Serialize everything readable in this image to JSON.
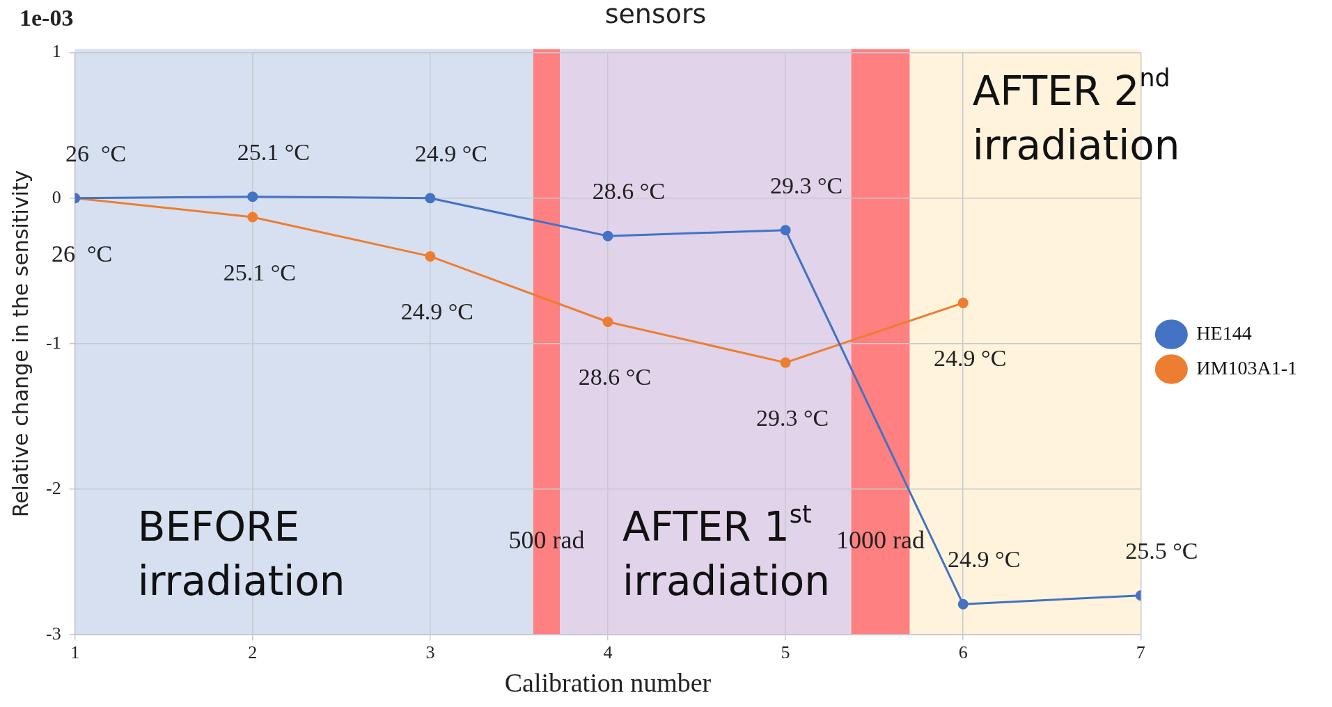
{
  "chart_data": {
    "type": "line",
    "title": "sensors",
    "xlabel": "Calibration number",
    "ylabel": "Relative change in the sensitivity",
    "x": [
      1,
      2,
      3,
      4,
      5,
      6,
      7
    ],
    "series": [
      {
        "name": "HE144",
        "color": "#4472c4",
        "values": [
          0,
          0.01,
          0,
          -0.26,
          -0.22,
          -2.79,
          -2.73
        ]
      },
      {
        "name": "ИМ103А1-1",
        "color": "#ed7d31",
        "values": [
          0,
          -0.13,
          -0.4,
          -0.85,
          -1.13,
          -0.72,
          null
        ]
      }
    ],
    "xlim": [
      1,
      7
    ],
    "xticks": [
      1,
      2,
      3,
      4,
      5,
      6,
      7
    ],
    "ylim": [
      -3,
      1
    ],
    "yticks": [
      -3,
      -2,
      -1,
      0,
      1
    ],
    "grid": true,
    "legend": "right",
    "marker": "circle",
    "line_style": "solid",
    "bands": [
      {
        "axis": "x",
        "from": 1,
        "to": 3.58,
        "label": "BEFORE\nirradiation",
        "color": "#d6e0f0"
      },
      {
        "axis": "x",
        "from": 3.58,
        "to": 3.73,
        "label": "500 rad",
        "color": "#ff8080"
      },
      {
        "axis": "x",
        "from": 3.73,
        "to": 5.37,
        "label": "AFTER 1$^{st}$\nirradiation",
        "color": "#e0d3ea"
      },
      {
        "axis": "x",
        "from": 5.37,
        "to": 5.7,
        "label": "1000 rad",
        "color": "#ff8080"
      },
      {
        "axis": "x",
        "from": 5.7,
        "to": 7,
        "label": "AFTER 2$^{nd}$\nirradiation",
        "color": "#fff3dc"
      }
    ],
    "annotations": [
      "1e-03",
      {
        "text": "26  °C",
        "x": 1,
        "y": 0
      },
      {
        "text": "25.1 °C",
        "x": 2,
        "y": 0.01
      },
      {
        "text": "24.9 °C",
        "x": 3,
        "y": 0
      },
      {
        "text": "28.6 °C",
        "x": 4,
        "y": -0.26
      },
      {
        "text": "29.3 °C",
        "x": 5,
        "y": -0.22
      },
      {
        "text": "24.9 °C",
        "x": 6,
        "y": -2.79
      },
      {
        "text": "25.5 °C",
        "x": 7,
        "y": -2.73
      },
      {
        "text": "26  °C",
        "x": 1,
        "y": 0
      },
      {
        "text": "25.1 °C",
        "x": 2,
        "y": -0.13
      },
      {
        "text": "24.9 °C",
        "x": 3,
        "y": -0.4
      },
      {
        "text": "28.6 °C",
        "x": 4,
        "y": -0.85
      },
      {
        "text": "29.3 °C",
        "x": 5,
        "y": -1.13
      },
      {
        "text": "24.9 °C",
        "x": 6,
        "y": -0.72
      }
    ]
  }
}
